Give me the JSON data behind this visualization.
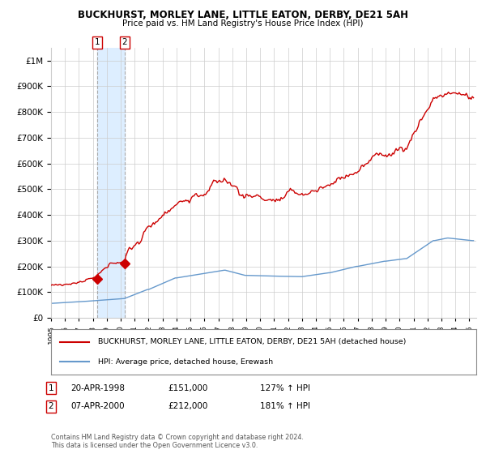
{
  "title": "BUCKHURST, MORLEY LANE, LITTLE EATON, DERBY, DE21 5AH",
  "subtitle": "Price paid vs. HM Land Registry's House Price Index (HPI)",
  "legend_line1": "BUCKHURST, MORLEY LANE, LITTLE EATON, DERBY, DE21 5AH (detached house)",
  "legend_line2": "HPI: Average price, detached house, Erewash",
  "footer": "Contains HM Land Registry data © Crown copyright and database right 2024.\nThis data is licensed under the Open Government Licence v3.0.",
  "sale1_date": "20-APR-1998",
  "sale1_price": 151000,
  "sale1_hpi": "127% ↑ HPI",
  "sale2_date": "07-APR-2000",
  "sale2_price": 212000,
  "sale2_hpi": "181% ↑ HPI",
  "sale1_x": 1998.3,
  "sale2_x": 2000.27,
  "red_color": "#cc0000",
  "blue_color": "#6699cc",
  "marker_color": "#cc0000",
  "shade_color": "#ddeeff",
  "grid_color": "#cccccc",
  "ylim_max": 1050000,
  "ylim_min": 0,
  "xlim_min": 1995.0,
  "xlim_max": 2025.5
}
